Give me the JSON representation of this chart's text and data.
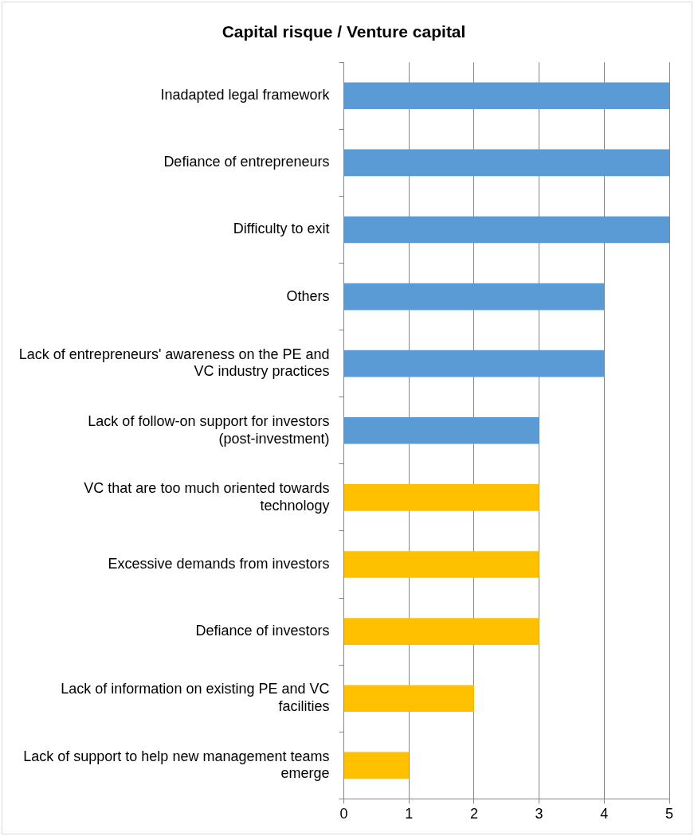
{
  "chart_data": {
    "type": "bar",
    "orientation": "horizontal",
    "title": "Capital risque / Venture capital",
    "categories": [
      "Inadapted legal framework",
      "Defiance of entrepreneurs",
      "Difficulty to exit",
      "Others",
      "Lack of entrepreneurs' awareness on the PE and VC industry practices",
      "Lack of follow-on support for investors (post-investment)",
      "VC that are too much oriented towards technology",
      "Excessive demands from investors",
      "Defiance of investors",
      "Lack of information on existing PE and VC facilities",
      "Lack of support to help new management teams emerge"
    ],
    "values": [
      5,
      5,
      5,
      4,
      4,
      3,
      3,
      3,
      3,
      2,
      1
    ],
    "colors": [
      "#5b9bd5",
      "#5b9bd5",
      "#5b9bd5",
      "#5b9bd5",
      "#5b9bd5",
      "#5b9bd5",
      "#ffc000",
      "#ffc000",
      "#ffc000",
      "#ffc000",
      "#ffc000"
    ],
    "xlim": [
      0,
      5
    ],
    "xticks": [
      0,
      1,
      2,
      3,
      4,
      5
    ],
    "grid": "x",
    "legend": false
  }
}
